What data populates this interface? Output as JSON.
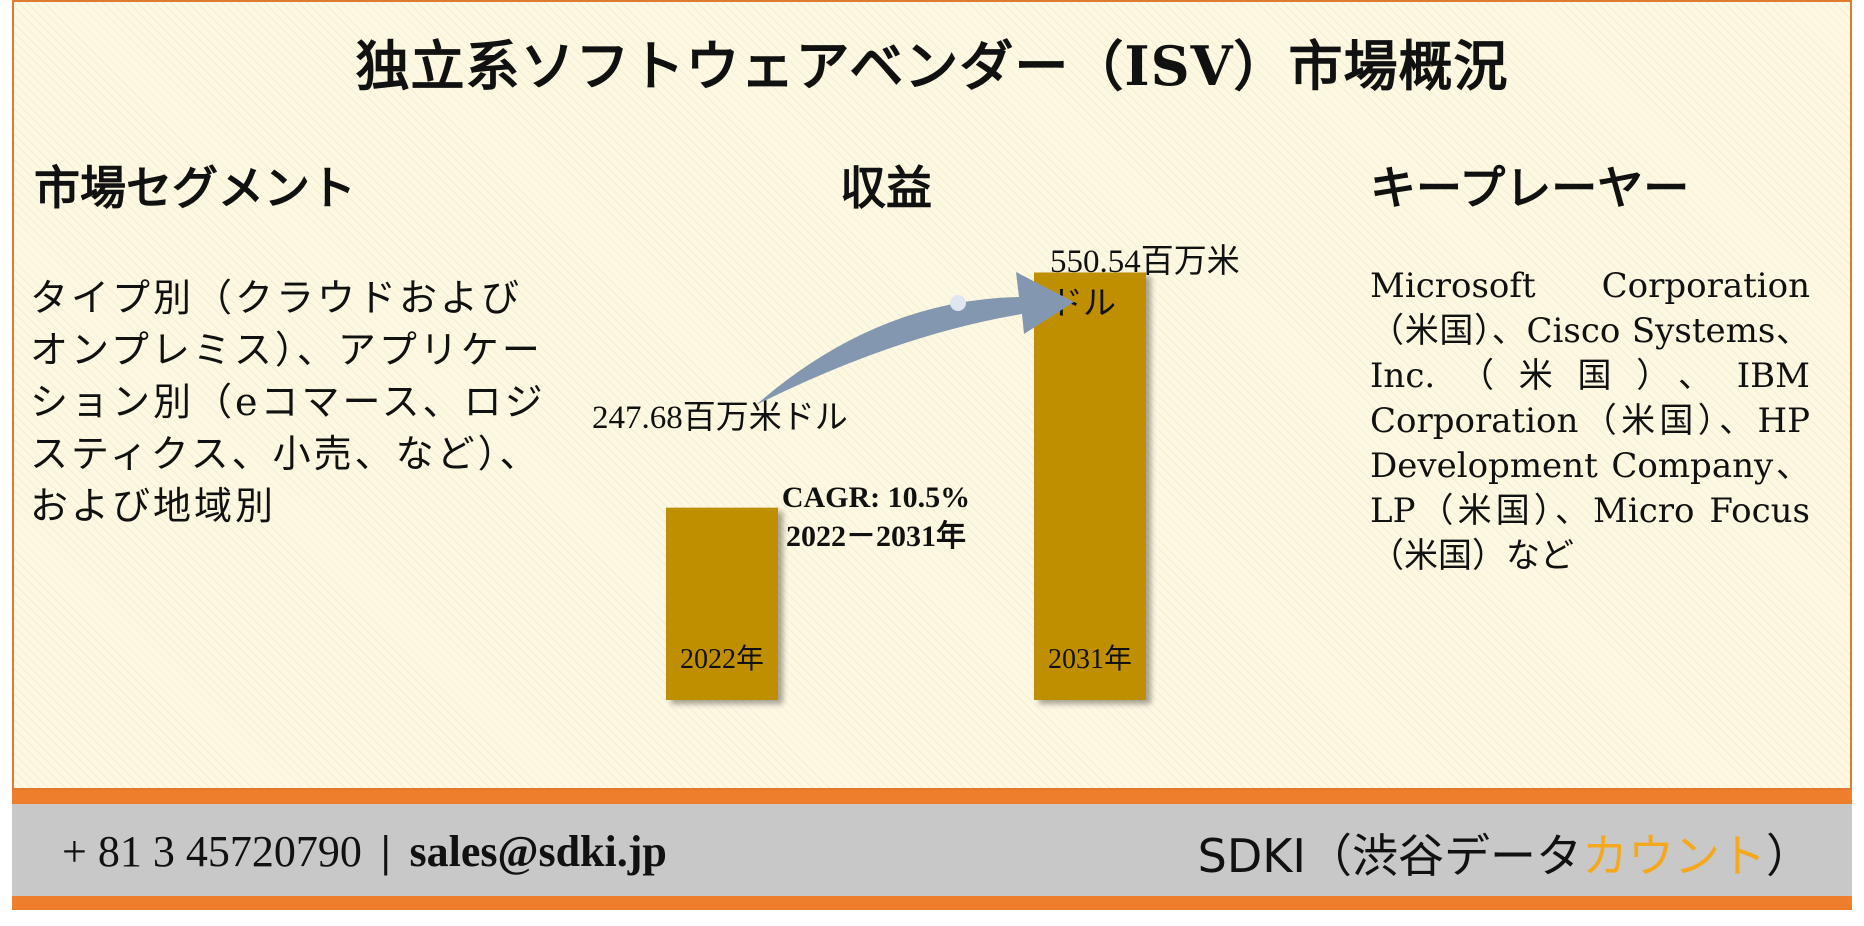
{
  "title": "独立系ソフトウェアベンダー（ISV）市場概況",
  "headings": {
    "segments": "市場セグメント",
    "revenue": "収益",
    "players": "キープレーヤー"
  },
  "segments_text": "タイプ別（クラウドおよびオンプレミス）、アプリケーション別（eコマース、ロジスティクス、小売、など）、および地域別",
  "players_text": "Microsoft Corporation（米国）、Cisco Systems、Inc.（米国）、IBM Corporation（米国）、HP Development Company、LP（米国）、Micro Focus（米国）など",
  "chart_data": {
    "type": "bar",
    "categories": [
      "2022年",
      "2031年"
    ],
    "values": [
      247.68,
      550.54
    ],
    "value_labels": [
      "247.68百万米ドル",
      "550.54百万米ドル"
    ],
    "value_label_2031_lines": [
      "550.54百万米",
      "ドル"
    ],
    "cagr_label": "CAGR: 10.5%",
    "cagr_period": "2022－2031年",
    "bar_color": "#bf8f00",
    "arrow_color": "#8497b0"
  },
  "footer": {
    "phone": "+ 81 3 45720790",
    "separator": "|",
    "email": "sales@sdki.jp",
    "brand_prefix": "SDKI（渋谷データ",
    "brand_accent": "カウント",
    "brand_suffix": "）",
    "accent_color": "#f4a81d",
    "border_color": "#ef7e2c"
  }
}
